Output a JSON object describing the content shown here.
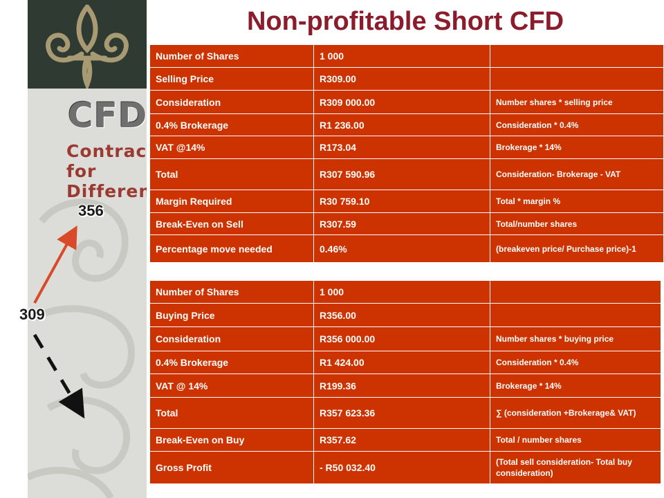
{
  "title": "Non-profitable Short CFD",
  "logo": {
    "brand": "CFDs",
    "tagline_line1": "Contract for",
    "tagline_line2": "Difference"
  },
  "price_labels": {
    "high": "356",
    "low": "309"
  },
  "sell_table": {
    "rows": [
      {
        "label": "Number of Shares",
        "value": "1 000",
        "note": ""
      },
      {
        "label": "Selling Price",
        "value": "R309.00",
        "note": ""
      },
      {
        "label": "Consideration",
        "value": "R309 000.00",
        "note": "Number shares * selling price"
      },
      {
        "label": "0.4% Brokerage",
        "value": "R1 236.00",
        "note": "Consideration * 0.4%"
      },
      {
        "label": "VAT @14%",
        "value": "R173.04",
        "note": "Brokerage * 14%"
      },
      {
        "label": "Total",
        "value": "R307 590.96",
        "note": "Consideration- Brokerage - VAT"
      },
      {
        "label": "Margin Required",
        "value": "R30 759.10",
        "note": "Total * margin %"
      },
      {
        "label": "Break-Even on Sell",
        "value": "R307.59",
        "note": "Total/number shares"
      },
      {
        "label": "Percentage move needed",
        "value": "0.46%",
        "note": "(breakeven price/ Purchase price)-1"
      }
    ]
  },
  "buy_table": {
    "rows": [
      {
        "label": "Number of Shares",
        "value": "1 000",
        "note": ""
      },
      {
        "label": "Buying Price",
        "value": "R356.00",
        "note": ""
      },
      {
        "label": "Consideration",
        "value": "R356 000.00",
        "note": "Number shares * buying price"
      },
      {
        "label": "0.4% Brokerage",
        "value": "R1 424.00",
        "note": "Consideration * 0.4%"
      },
      {
        "label": "VAT @ 14%",
        "value": "R199.36",
        "note": "Brokerage * 14%"
      },
      {
        "label": "Total",
        "value": "R357 623.36",
        "note": "∑ (consideration +Brokerage& VAT)"
      },
      {
        "label": "Break-Even on Buy",
        "value": "R357.62",
        "note": "Total / number shares"
      },
      {
        "label": "Gross Profit",
        "value": "- R50 032.40",
        "note": "(Total sell consideration- Total buy consideration)"
      }
    ]
  }
}
